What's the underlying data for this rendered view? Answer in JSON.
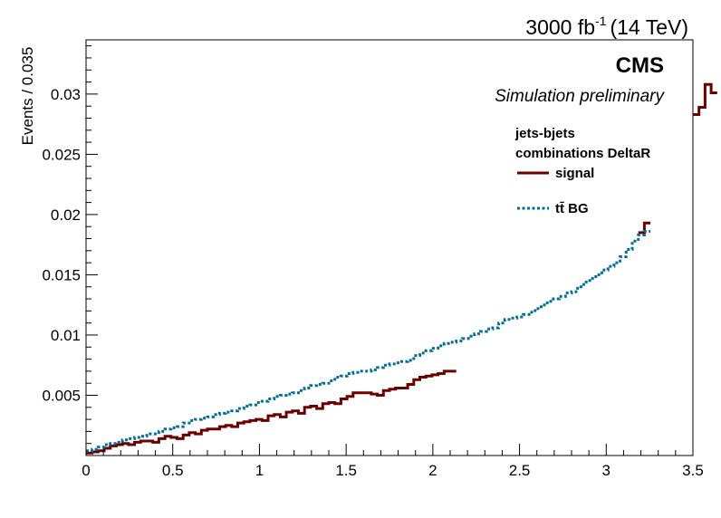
{
  "header": {
    "lumi_prefix": "3000 fb",
    "lumi_exponent": "-1",
    "lumi_suffix": "(14 TeV)",
    "experiment": "CMS",
    "status": "Simulation preliminary"
  },
  "legend": {
    "title_line1": "jets-bjets",
    "title_line2": "combinations DeltaR",
    "placement": "top-right"
  },
  "colors": {
    "signal": "#6b0000",
    "background": "#006e96"
  },
  "chart_data": {
    "type": "line",
    "xlabel": "",
    "ylabel": "Events / 0.035",
    "xlim": [
      0,
      3.5
    ],
    "ylim": [
      0,
      0.0345
    ],
    "bin_width": 0.035,
    "x_ticks": [
      {
        "v": 0,
        "label": "0"
      },
      {
        "v": 0.5,
        "label": "0.5"
      },
      {
        "v": 1,
        "label": "1"
      },
      {
        "v": 1.5,
        "label": "1.5"
      },
      {
        "v": 2,
        "label": "2"
      },
      {
        "v": 2.5,
        "label": "2.5"
      },
      {
        "v": 3,
        "label": "3"
      },
      {
        "v": 3.5,
        "label": "3.5"
      }
    ],
    "y_ticks": [
      {
        "v": 0.005,
        "label": "0.005"
      },
      {
        "v": 0.01,
        "label": "0.01"
      },
      {
        "v": 0.015,
        "label": "0.015"
      },
      {
        "v": 0.02,
        "label": "0.02"
      },
      {
        "v": 0.025,
        "label": "0.025"
      },
      {
        "v": 0.03,
        "label": "0.03"
      }
    ],
    "series": [
      {
        "name": "signal",
        "style": "solid",
        "values": [
          0.0002,
          0.0003,
          0.0004,
          0.0006,
          0.0008,
          0.0009,
          0.001,
          0.0009,
          0.0011,
          0.0012,
          0.0012,
          0.0011,
          0.0014,
          0.0016,
          0.0015,
          0.0014,
          0.0017,
          0.0019,
          0.0018,
          0.0021,
          0.0022,
          0.0022,
          0.0024,
          0.0025,
          0.0024,
          0.0027,
          0.0028,
          0.0029,
          0.003,
          0.0029,
          0.0033,
          0.0034,
          0.0032,
          0.0036,
          0.0037,
          0.0035,
          0.004,
          0.0041,
          0.0039,
          0.0043,
          0.0044,
          0.0043,
          0.0047,
          0.0049,
          0.0052,
          0.0052,
          0.0052,
          0.0051,
          0.005,
          0.0054,
          0.0055,
          0.0056,
          0.0056,
          0.0059,
          0.0063,
          0.0065,
          0.0066,
          0.0067,
          0.0068,
          0.007,
          0.007,
          0.0081,
          0.008,
          0.0082,
          0.0086,
          0.0084,
          0.0087,
          0.0091,
          0.0094,
          0.0099,
          0.0093,
          0.0098,
          0.0102,
          0.0104,
          0.011,
          0.0107,
          0.0118,
          0.0117,
          0.012,
          0.0127,
          0.0129,
          0.0129,
          0.0138,
          0.0145,
          0.0152,
          0.0149,
          0.0156,
          0.0163,
          0.0158,
          0.017,
          0.0178,
          0.0185,
          0.0193,
          0.02,
          0.021,
          0.022,
          0.0232,
          0.0246,
          0.0262,
          0.0284,
          0.0283,
          0.0289,
          0.0308,
          0.0301,
          0.0278,
          0.0245,
          0.0216,
          0.0195,
          0.0182,
          0.017,
          0.015,
          0.0135,
          0.013,
          0.0118,
          0.0111,
          0.0108,
          0.0106,
          0.0106,
          0.0106,
          0.0106
        ],
        "visible": [
          [
            0,
            61
          ],
          [
            91,
            93
          ],
          [
            100,
            104
          ],
          [
            107,
            120
          ]
        ]
      },
      {
        "name": "tt̄ BG",
        "style": "dotted",
        "values": [
          0.0004,
          0.0005,
          0.0007,
          0.0009,
          0.001,
          0.0011,
          0.0013,
          0.0014,
          0.0015,
          0.0016,
          0.0018,
          0.0018,
          0.002,
          0.0022,
          0.0023,
          0.0024,
          0.0027,
          0.0029,
          0.003,
          0.0031,
          0.0032,
          0.0034,
          0.0035,
          0.0036,
          0.0037,
          0.0039,
          0.0041,
          0.0042,
          0.0044,
          0.0045,
          0.0047,
          0.0049,
          0.005,
          0.0051,
          0.0052,
          0.0054,
          0.0056,
          0.0058,
          0.0059,
          0.006,
          0.0062,
          0.0065,
          0.0066,
          0.0068,
          0.0069,
          0.007,
          0.007,
          0.0071,
          0.0073,
          0.0075,
          0.0076,
          0.0077,
          0.0078,
          0.0079,
          0.0083,
          0.0085,
          0.0087,
          0.0089,
          0.0091,
          0.0093,
          0.0094,
          0.0095,
          0.0097,
          0.0099,
          0.0101,
          0.0103,
          0.0105,
          0.0106,
          0.011,
          0.0113,
          0.0114,
          0.0115,
          0.0117,
          0.0119,
          0.0122,
          0.0125,
          0.0128,
          0.013,
          0.0132,
          0.0135,
          0.0136,
          0.014,
          0.0144,
          0.0147,
          0.015,
          0.0154,
          0.0157,
          0.016,
          0.0165,
          0.0171,
          0.0178,
          0.0183,
          0.0186,
          0.0189,
          0.0192,
          0.0195,
          0.0198,
          0.0201,
          0.021,
          0.022,
          0.023,
          0.0235,
          0.024,
          0.0245,
          0.023,
          0.021,
          0.0196,
          0.0175,
          0.0168,
          0.016,
          0.0145,
          0.0135,
          0.0122,
          0.0114,
          0.0109,
          0.0104,
          0.0101,
          0.0099,
          0.0097,
          0.0095
        ],
        "visible": [
          [
            0,
            93
          ],
          [
            105,
            120
          ]
        ]
      }
    ]
  }
}
